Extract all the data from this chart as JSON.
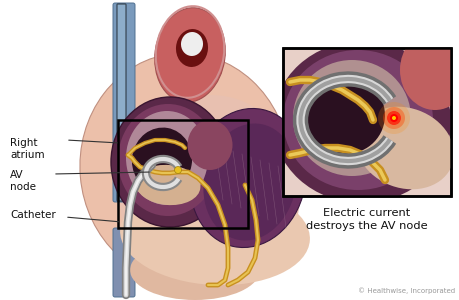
{
  "bg_color": "#ffffff",
  "text_color": "#111111",
  "label_right_atrium": "Right\natrium",
  "label_av_node": "AV\nnode",
  "label_catheter": "Catheter",
  "caption": "Electric current\ndestroys the AV node",
  "copyright": "© Healthwise, Incorporated",
  "box_border": "#000000",
  "heart_pink_outer": "#e8b8a8",
  "heart_red": "#c86060",
  "heart_dark_red": "#9b3030",
  "aorta_pink": "#d08080",
  "blue_vessel": "#7a9abc",
  "ra_purple_dark": "#5a2848",
  "ra_purple_mid": "#7a3a60",
  "ra_inner_pink": "#c8a0b0",
  "ra_cavity_dark": "#3a1830",
  "lv_purple": "#6a3060",
  "lv_light_pink": "#e0c0c0",
  "muscle_pink": "#f0cfc0",
  "gold_outer": "#c89020",
  "gold_inner": "#f0d060",
  "catheter_dark": "#909090",
  "catheter_light": "#e0e0e0",
  "red_glow": "#dd1111",
  "inset_bg_col": "#e8d8d0",
  "inset_purple_dark": "#5a2848",
  "inset_purple_mid": "#7a406a",
  "inset_inner_pink": "#c8a8b8",
  "inset_gold": "#c89020",
  "inset_gold_light": "#f0d060",
  "inset_red": "#cc1111"
}
